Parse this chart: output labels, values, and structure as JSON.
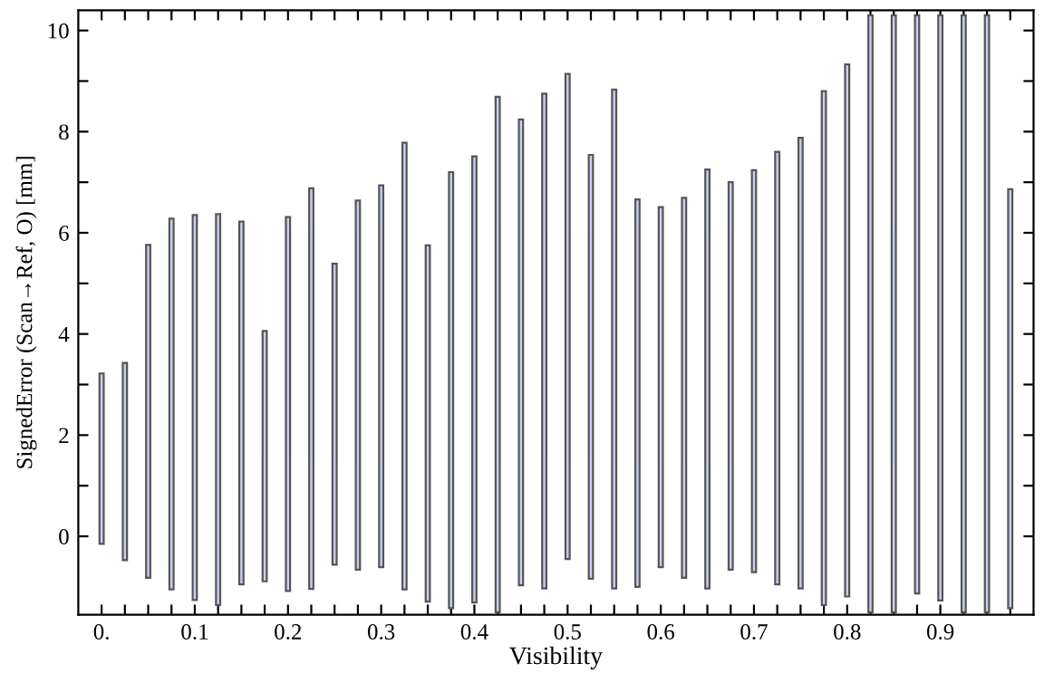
{
  "chart_data": {
    "type": "bar",
    "xlabel": "Visibility",
    "ylabel": "SignedError (Scan→Ref, O) [mm]",
    "x": [
      0,
      0.025,
      0.05,
      0.075,
      0.1,
      0.125,
      0.15,
      0.175,
      0.2,
      0.225,
      0.25,
      0.275,
      0.3,
      0.325,
      0.35,
      0.375,
      0.4,
      0.425,
      0.45,
      0.475,
      0.5,
      0.525,
      0.55,
      0.575,
      0.6,
      0.625,
      0.65,
      0.675,
      0.7,
      0.725,
      0.75,
      0.775,
      0.8,
      0.825,
      0.85,
      0.875,
      0.9,
      0.925,
      0.95,
      0.975
    ],
    "base": [
      -0.15,
      -0.47,
      -0.82,
      -1.05,
      -1.26,
      -1.36,
      -0.95,
      -0.89,
      -1.08,
      -1.04,
      -0.56,
      -0.66,
      -0.61,
      -1.05,
      -1.29,
      -1.42,
      -1.31,
      -1.5,
      -0.97,
      -1.03,
      -0.45,
      -0.84,
      -1.03,
      -1.0,
      -0.61,
      -0.82,
      -1.03,
      -0.66,
      -0.71,
      -0.95,
      -1.03,
      -1.36,
      -1.19,
      -1.5,
      -1.5,
      -1.13,
      -1.27,
      -1.5,
      -1.5,
      -1.42
    ],
    "values": [
      3.37,
      3.9,
      6.58,
      7.33,
      7.61,
      7.73,
      7.17,
      4.95,
      7.39,
      7.92,
      5.95,
      7.3,
      7.55,
      8.83,
      7.04,
      8.62,
      8.82,
      10.19,
      9.21,
      9.78,
      9.59,
      8.38,
      9.86,
      7.66,
      7.12,
      7.51,
      8.28,
      7.66,
      7.95,
      8.55,
      8.91,
      10.16,
      10.52,
      11.8,
      11.8,
      11.43,
      11.57,
      11.8,
      11.8,
      8.28
    ],
    "color": "#c8d0f2",
    "xlim": [
      -0.025,
      1.0
    ],
    "ylim": [
      -1.55,
      10.4
    ],
    "xticks": [
      {
        "value": 0,
        "label": "0."
      },
      {
        "value": 0.025,
        "label": null
      },
      {
        "value": 0.05,
        "label": null
      },
      {
        "value": 0.075,
        "label": null
      },
      {
        "value": 0.1,
        "label": "0.1"
      },
      {
        "value": 0.125,
        "label": null
      },
      {
        "value": 0.15,
        "label": null
      },
      {
        "value": 0.175,
        "label": null
      },
      {
        "value": 0.2,
        "label": "0.2"
      },
      {
        "value": 0.225,
        "label": null
      },
      {
        "value": 0.25,
        "label": null
      },
      {
        "value": 0.275,
        "label": null
      },
      {
        "value": 0.3,
        "label": "0.3"
      },
      {
        "value": 0.325,
        "label": null
      },
      {
        "value": 0.35,
        "label": null
      },
      {
        "value": 0.375,
        "label": null
      },
      {
        "value": 0.4,
        "label": "0.4"
      },
      {
        "value": 0.425,
        "label": null
      },
      {
        "value": 0.45,
        "label": null
      },
      {
        "value": 0.475,
        "label": null
      },
      {
        "value": 0.5,
        "label": "0.5"
      },
      {
        "value": 0.525,
        "label": null
      },
      {
        "value": 0.55,
        "label": null
      },
      {
        "value": 0.575,
        "label": null
      },
      {
        "value": 0.6,
        "label": "0.6"
      },
      {
        "value": 0.625,
        "label": null
      },
      {
        "value": 0.65,
        "label": null
      },
      {
        "value": 0.675,
        "label": null
      },
      {
        "value": 0.7,
        "label": "0.7"
      },
      {
        "value": 0.725,
        "label": null
      },
      {
        "value": 0.75,
        "label": null
      },
      {
        "value": 0.775,
        "label": null
      },
      {
        "value": 0.8,
        "label": "0.8"
      },
      {
        "value": 0.825,
        "label": null
      },
      {
        "value": 0.85,
        "label": null
      },
      {
        "value": 0.875,
        "label": null
      },
      {
        "value": 0.9,
        "label": "0.9"
      },
      {
        "value": 0.925,
        "label": null
      },
      {
        "value": 0.95,
        "label": null
      },
      {
        "value": 0.975,
        "label": null
      }
    ],
    "yticks": [
      0,
      {
        "value": 1,
        "label": null
      },
      2,
      {
        "value": 3,
        "label": null
      },
      4,
      {
        "value": 5,
        "label": null
      },
      6,
      {
        "value": 7,
        "label": null
      },
      8,
      {
        "value": 9,
        "label": null
      },
      10
    ],
    "grid": false,
    "legend": false
  }
}
